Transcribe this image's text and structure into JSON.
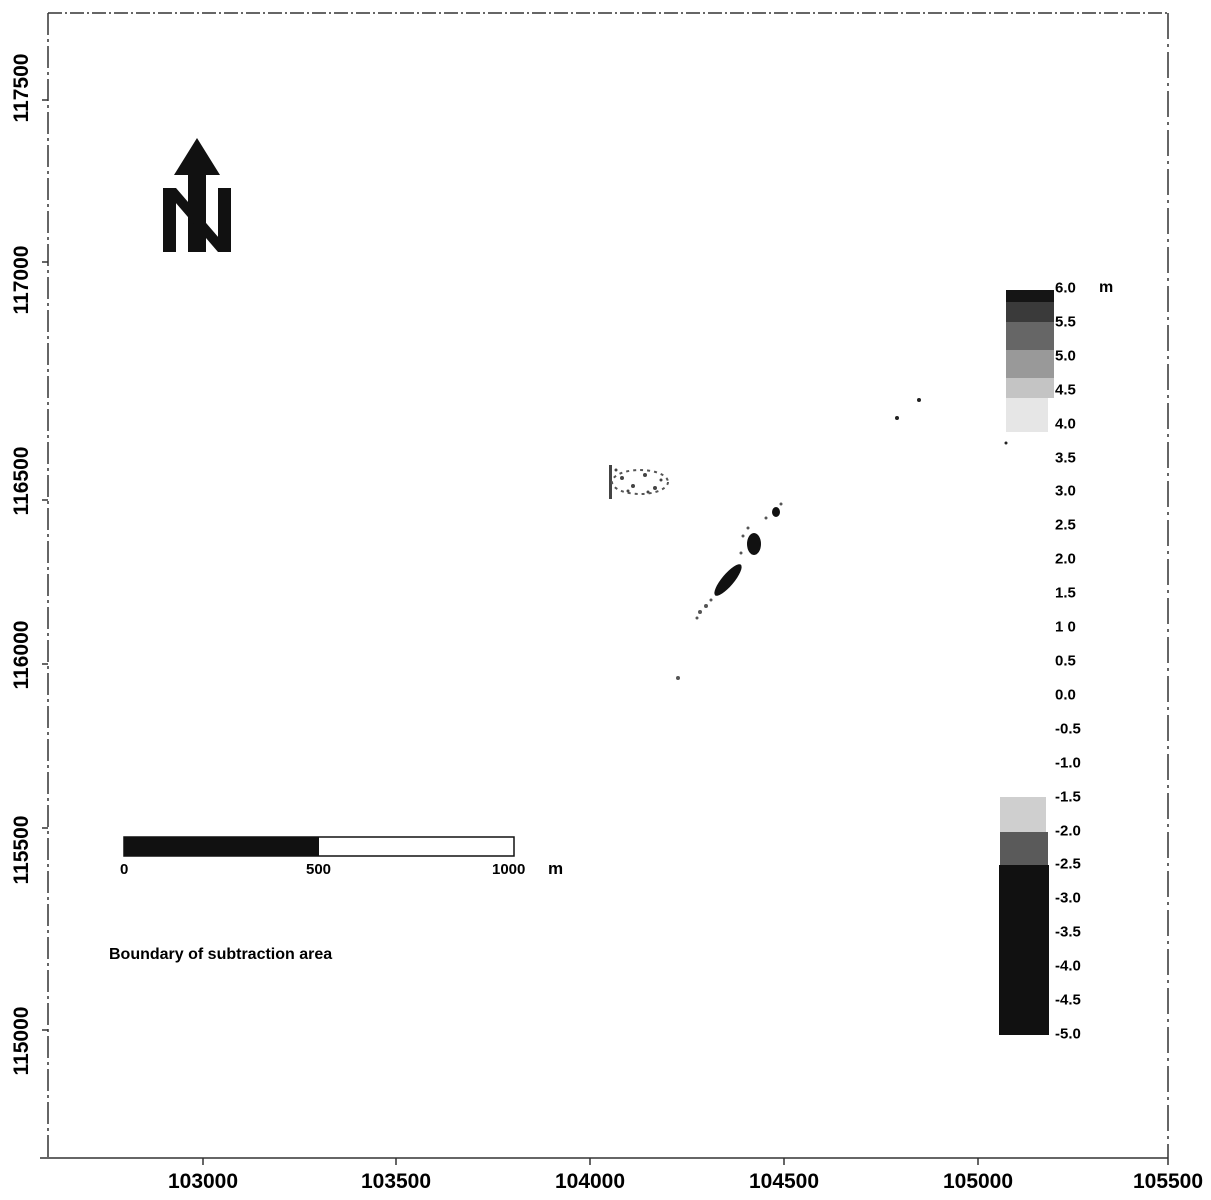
{
  "axes": {
    "x_ticks": [
      "103000",
      "103500",
      "104000",
      "104500",
      "105000",
      "105500"
    ],
    "y_ticks": [
      "117500",
      "117000",
      "116500",
      "116000",
      "115500",
      "115000"
    ]
  },
  "north_arrow": {
    "label": "N",
    "icon": "north-arrow-icon"
  },
  "scale_bar": {
    "labels": [
      "0",
      "500",
      "1000"
    ],
    "unit": "m",
    "max_value": 1000,
    "dark_fraction": 0.5
  },
  "annotation": "Boundary of subtraction area",
  "legend": {
    "unit": "m",
    "values": [
      "6.0",
      "5.5",
      "5.0",
      "4.5",
      "4.0",
      "3.5",
      "3.0",
      "2.5",
      "2.0",
      "1.5",
      "1 0",
      "0.5",
      "0.0",
      "-0.5",
      "-1.0",
      "-1.5",
      "-2.0",
      "-2.5",
      "-3.0",
      "-3.5",
      "-4.0",
      "-4.5",
      "-5.0"
    ]
  },
  "colors": {
    "ink": "#111111",
    "background": "#ffffff",
    "frame": "#333333"
  }
}
